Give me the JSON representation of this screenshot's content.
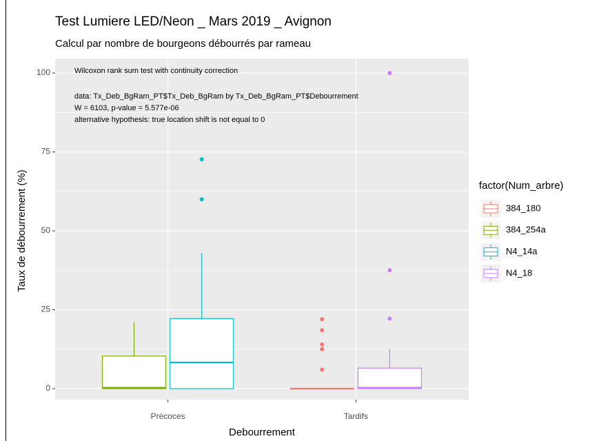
{
  "chart_data": {
    "type": "boxplot",
    "title": "Test Lumiere LED/Neon _ Mars 2019 _ Avignon",
    "subtitle": "Calcul par nombre de bourgeons débourrés par rameau",
    "x_label": "Debourrement",
    "y_label": "Taux de débourrement (%)",
    "legend_title": "factor(Num_arbre)",
    "annotation": [
      "Wilcoxon rank sum test with continuity correction",
      "data:  Tx_Deb_BgRam_PT$Tx_Deb_BgRam by Tx_Deb_BgRam_PT$Debourrement",
      "W = 6103, p-value = 5.577e-06",
      "alternative hypothesis: true location shift is not equal to 0"
    ],
    "categories": [
      "Précoces",
      "Tardifs"
    ],
    "series": [
      {
        "name": "384_180",
        "color": "#F8766D",
        "values": [
          null,
          {
            "min": 0,
            "q1": 0,
            "median": 0,
            "q3": 0,
            "max": 0,
            "outliers": [
              6,
              12.5,
              14,
              18.5,
              22
            ]
          }
        ]
      },
      {
        "name": "384_254a",
        "color": "#7CAE00",
        "values": [
          {
            "min": 0,
            "q1": 0,
            "median": 0.3,
            "q3": 10.3,
            "max": 21,
            "outliers": []
          },
          null
        ]
      },
      {
        "name": "N4_14a",
        "color": "#00BFC4",
        "values": [
          {
            "min": 0,
            "q1": 0,
            "median": 8.3,
            "q3": 22.2,
            "max": 43,
            "outliers": [
              60,
              72.7
            ]
          },
          null
        ]
      },
      {
        "name": "N4_18",
        "color": "#C77CFF",
        "values": [
          null,
          {
            "min": 0,
            "q1": 0,
            "median": 0.3,
            "q3": 6.5,
            "max": 12.5,
            "outliers": [
              22.2,
              37.5,
              100
            ]
          }
        ]
      }
    ],
    "ylim": [
      -3.5,
      104.6
    ],
    "yticks": [
      0,
      25,
      50,
      75,
      100
    ],
    "grid": true
  }
}
